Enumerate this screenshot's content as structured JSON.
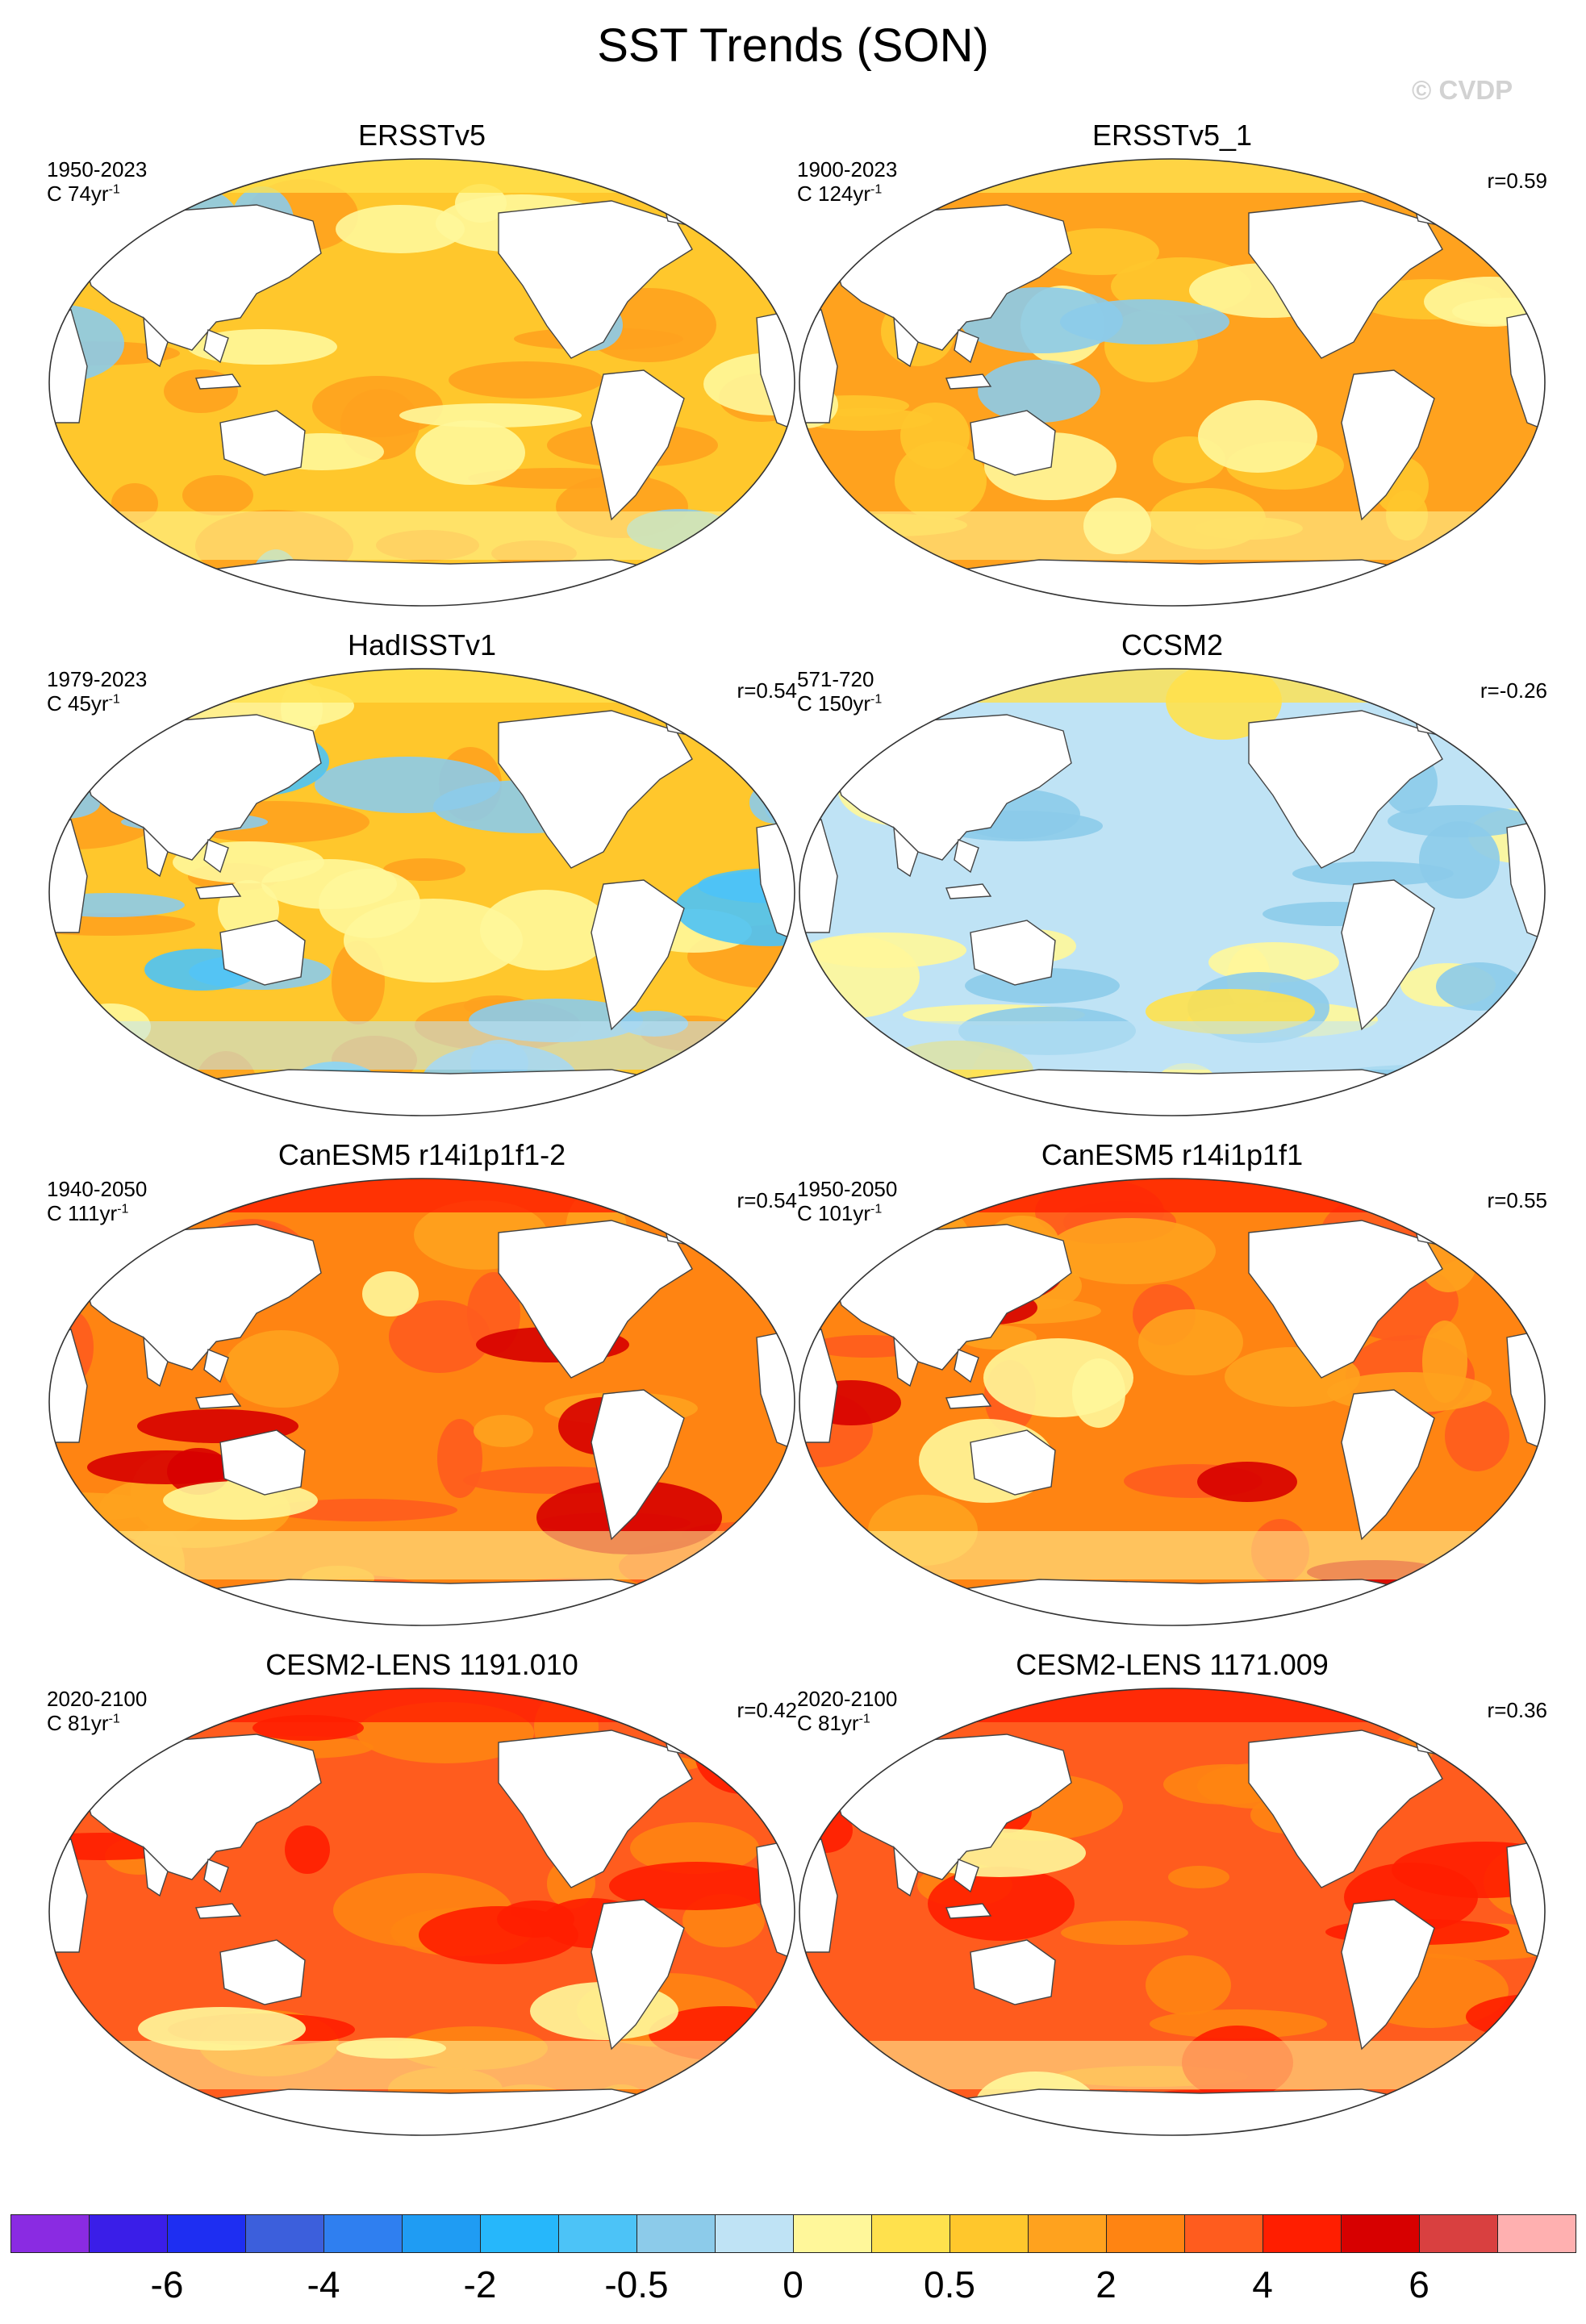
{
  "title": "SST Trends (SON)",
  "watermark": "© CVDP",
  "panels": [
    {
      "title": "ERSSTv5",
      "period": "1950-2023",
      "scale_prefix": "C 74yr",
      "scale_exp": "-1",
      "r": "",
      "style": "obs"
    },
    {
      "title": "ERSSTv5_1",
      "period": "1900-2023",
      "scale_prefix": "C 124yr",
      "scale_exp": "-1",
      "r": "r=0.59",
      "style": "obs2"
    },
    {
      "title": "HadISSTv1",
      "period": "1979-2023",
      "scale_prefix": "C 45yr",
      "scale_exp": "-1",
      "r": "r=0.54",
      "style": "hadisst"
    },
    {
      "title": "CCSM2",
      "period": "571-720",
      "scale_prefix": "C 150yr",
      "scale_exp": "-1",
      "r": "r=-0.26",
      "style": "ccsm"
    },
    {
      "title": "CanESM5 r14i1p1f1-2",
      "period": "1940-2050",
      "scale_prefix": "C 111yr",
      "scale_exp": "-1",
      "r": "r=0.54",
      "style": "canesm"
    },
    {
      "title": "CanESM5 r14i1p1f1",
      "period": "1950-2050",
      "scale_prefix": "C 101yr",
      "scale_exp": "-1",
      "r": "r=0.55",
      "style": "canesm"
    },
    {
      "title": "CESM2-LENS 1191.010",
      "period": "2020-2100",
      "scale_prefix": "C 81yr",
      "scale_exp": "-1",
      "r": "r=0.42",
      "style": "cesm"
    },
    {
      "title": "CESM2-LENS 1171.009",
      "period": "2020-2100",
      "scale_prefix": "C 81yr",
      "scale_exp": "-1",
      "r": "r=0.36",
      "style": "cesm"
    }
  ],
  "colorbar": {
    "colors": [
      "#8a2be2",
      "#3a1ee8",
      "#1e2ef2",
      "#3c5fdc",
      "#2f7ff0",
      "#1f9cf3",
      "#26b7fb",
      "#4cc3f7",
      "#8ccbea",
      "#bfe3f5",
      "#fff79a",
      "#ffe14d",
      "#ffc72c",
      "#ffa21e",
      "#ff8412",
      "#ff5c1e",
      "#ff1e00",
      "#d70000",
      "#d94040",
      "#ffb0b0"
    ],
    "labels": [
      "-6",
      "-4",
      "-2",
      "-0.5",
      "0",
      "0.5",
      "2",
      "4",
      "6"
    ],
    "label_boundaries": [
      2,
      4,
      6,
      8,
      10,
      12,
      14,
      16,
      18
    ]
  }
}
